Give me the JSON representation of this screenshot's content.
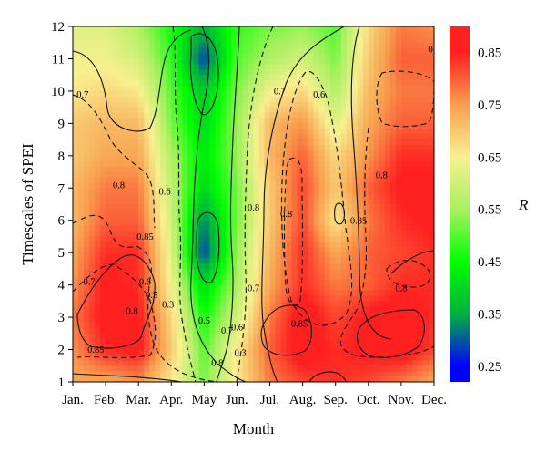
{
  "chart_data": {
    "type": "heatmap",
    "xlabel": "Month",
    "ylabel": "Timescales of SPEI",
    "colorbar_label": "R",
    "x_ticks": [
      "Jan.",
      "Feb.",
      "Mar.",
      "Apr.",
      "May",
      "Jun.",
      "Jul.",
      "Aug.",
      "Sep.",
      "Oct.",
      "Nov.",
      "Dec."
    ],
    "y_ticks": [
      "1",
      "2",
      "3",
      "4",
      "5",
      "6",
      "7",
      "8",
      "9",
      "10",
      "11",
      "12"
    ],
    "xlim": [
      1,
      12
    ],
    "ylim": [
      1,
      12
    ],
    "colorbar": {
      "range": [
        0.22,
        0.9
      ],
      "ticks": [
        "0.25",
        "0.35",
        "0.45",
        "0.55",
        "0.65",
        "0.75",
        "0.85"
      ],
      "tick_values": [
        0.25,
        0.35,
        0.45,
        0.55,
        0.65,
        0.75,
        0.85
      ],
      "colors": [
        "#0000ff",
        "#00b040",
        "#00ff00",
        "#a8f060",
        "#f8f090",
        "#f8a050",
        "#ff2020"
      ]
    },
    "contour_levels": [
      0.3,
      0.5,
      0.6,
      0.7,
      0.8,
      0.85
    ],
    "contour_labels": [
      "0.85",
      "0.8",
      "0.7",
      "0.6",
      "0.5",
      "0.3",
      "0.85",
      "0.8",
      "0.7",
      "0.6",
      "0.5",
      "0.3",
      "0.6",
      "0.7",
      "0.8",
      "0.85",
      "0.7",
      "0.8",
      "0.8",
      "0.6",
      "0.7",
      "0.8",
      "0.85",
      "0.8",
      "0.8"
    ],
    "values": [
      [
        0.74,
        0.74,
        0.76,
        0.66,
        0.52,
        0.66,
        0.78,
        0.82,
        0.84,
        0.82,
        0.78,
        0.74
      ],
      [
        0.76,
        0.84,
        0.86,
        0.7,
        0.5,
        0.66,
        0.8,
        0.88,
        0.84,
        0.86,
        0.88,
        0.82
      ],
      [
        0.78,
        0.87,
        0.86,
        0.68,
        0.46,
        0.6,
        0.78,
        0.88,
        0.82,
        0.86,
        0.88,
        0.84
      ],
      [
        0.76,
        0.86,
        0.84,
        0.64,
        0.4,
        0.56,
        0.74,
        0.84,
        0.78,
        0.8,
        0.84,
        0.84
      ],
      [
        0.74,
        0.84,
        0.84,
        0.62,
        0.28,
        0.54,
        0.72,
        0.84,
        0.74,
        0.8,
        0.82,
        0.84
      ],
      [
        0.72,
        0.8,
        0.8,
        0.6,
        0.32,
        0.52,
        0.7,
        0.82,
        0.66,
        0.78,
        0.84,
        0.86
      ],
      [
        0.72,
        0.78,
        0.78,
        0.58,
        0.4,
        0.52,
        0.7,
        0.82,
        0.7,
        0.8,
        0.86,
        0.86
      ],
      [
        0.7,
        0.74,
        0.74,
        0.56,
        0.42,
        0.54,
        0.72,
        0.8,
        0.68,
        0.76,
        0.84,
        0.84
      ],
      [
        0.7,
        0.72,
        0.72,
        0.52,
        0.4,
        0.54,
        0.72,
        0.76,
        0.62,
        0.74,
        0.8,
        0.8
      ],
      [
        0.66,
        0.68,
        0.66,
        0.5,
        0.38,
        0.52,
        0.64,
        0.68,
        0.56,
        0.72,
        0.78,
        0.78
      ],
      [
        0.64,
        0.64,
        0.6,
        0.48,
        0.28,
        0.5,
        0.56,
        0.6,
        0.52,
        0.7,
        0.8,
        0.8
      ],
      [
        0.62,
        0.62,
        0.56,
        0.46,
        0.36,
        0.48,
        0.52,
        0.54,
        0.5,
        0.68,
        0.78,
        0.76
      ]
    ]
  }
}
